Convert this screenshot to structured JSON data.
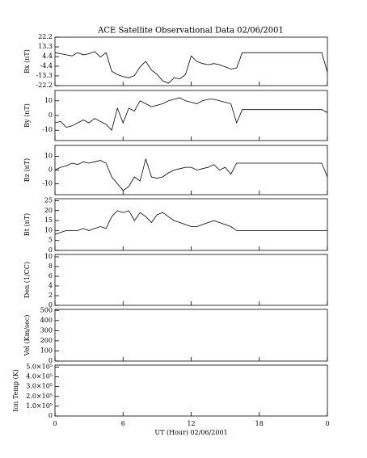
{
  "chart_data": [
    {
      "type": "line",
      "title": "ACE Satellite Observational Data   02/06/2001",
      "ylabel": "Bx (nT)",
      "ylim": [
        -22.2,
        22.2
      ],
      "yticks": [
        22.2,
        13.3,
        4.4,
        -4.4,
        -13.3,
        -22.2
      ],
      "x": [
        0,
        0.5,
        1,
        1.5,
        2,
        2.5,
        3,
        3.5,
        4,
        4.5,
        5,
        5.5,
        6,
        6.5,
        7,
        7.5,
        8,
        8.5,
        9,
        9.5,
        10,
        10.5,
        11,
        11.5,
        12,
        12.5,
        13,
        13.5,
        14,
        14.5,
        15,
        15.5,
        16,
        16.5,
        17,
        17.5,
        18,
        18.5,
        19,
        19.5,
        20,
        20.5,
        21,
        21.5,
        22,
        22.5,
        23,
        23.5,
        24
      ],
      "series": [
        {
          "color": "#000000",
          "values": [
            8,
            7,
            6,
            5,
            8,
            6,
            7,
            9,
            4,
            8,
            -9,
            -12,
            -14,
            -15,
            -13,
            -5,
            0,
            -8,
            -12,
            -18,
            -20,
            -15,
            -16,
            -12,
            5,
            0,
            -2,
            -3,
            -2,
            -3,
            -5,
            -7,
            -6,
            8,
            8,
            8,
            8,
            8,
            8,
            8,
            8,
            8,
            8,
            8,
            8,
            8,
            8,
            8,
            -10
          ]
        }
      ]
    },
    {
      "type": "line",
      "ylabel": "By (nT)",
      "ylim": [
        -17,
        17
      ],
      "yticks": [
        10,
        0,
        -10
      ],
      "x": [
        0,
        0.5,
        1,
        1.5,
        2,
        2.5,
        3,
        3.5,
        4,
        4.5,
        5,
        5.5,
        6,
        6.5,
        7,
        7.5,
        8,
        8.5,
        9,
        9.5,
        10,
        10.5,
        11,
        11.5,
        12,
        12.5,
        13,
        13.5,
        14,
        14.5,
        15,
        15.5,
        16,
        16.5,
        17,
        17.5,
        18,
        18.5,
        19,
        19.5,
        20,
        20.5,
        21,
        21.5,
        22,
        22.5,
        23,
        23.5,
        24
      ],
      "series": [
        {
          "color": "#000000",
          "values": [
            -5,
            -4,
            -8,
            -7,
            -5,
            -3,
            -5,
            -2,
            -4,
            -6,
            -10,
            5,
            -5,
            5,
            3,
            10,
            8,
            6,
            7,
            8,
            10,
            11,
            12,
            10,
            9,
            8,
            10,
            11,
            11,
            10,
            9,
            8,
            -5,
            4,
            4,
            4,
            4,
            4,
            4,
            4,
            4,
            4,
            4,
            4,
            4,
            4,
            4,
            4,
            2
          ]
        }
      ]
    },
    {
      "type": "line",
      "ylabel": "Bz (nT)",
      "ylim": [
        -18,
        18
      ],
      "yticks": [
        10,
        0,
        -10
      ],
      "x": [
        0,
        0.5,
        1,
        1.5,
        2,
        2.5,
        3,
        3.5,
        4,
        4.5,
        5,
        5.5,
        6,
        6.5,
        7,
        7.5,
        8,
        8.5,
        9,
        9.5,
        10,
        10.5,
        11,
        11.5,
        12,
        12.5,
        13,
        13.5,
        14,
        14.5,
        15,
        15.5,
        16,
        16.5,
        17,
        17.5,
        18,
        18.5,
        19,
        19.5,
        20,
        20.5,
        21,
        21.5,
        22,
        22.5,
        23,
        23.5,
        24
      ],
      "series": [
        {
          "color": "#000000",
          "values": [
            0,
            2,
            3,
            5,
            4,
            6,
            5,
            6,
            7,
            5,
            -5,
            -10,
            -15,
            -12,
            -5,
            -8,
            8,
            -5,
            -6,
            -5,
            -2,
            0,
            1,
            2,
            2,
            0,
            1,
            2,
            4,
            0,
            2,
            -3,
            5,
            5,
            5,
            5,
            5,
            5,
            5,
            5,
            5,
            5,
            5,
            5,
            5,
            5,
            5,
            5,
            -5
          ]
        }
      ]
    },
    {
      "type": "line",
      "ylabel": "Bt (nT)",
      "ylim": [
        0,
        26
      ],
      "yticks": [
        25,
        20,
        15,
        10,
        5,
        0
      ],
      "x": [
        0,
        0.5,
        1,
        1.5,
        2,
        2.5,
        3,
        3.5,
        4,
        4.5,
        5,
        5.5,
        6,
        6.5,
        7,
        7.5,
        8,
        8.5,
        9,
        9.5,
        10,
        10.5,
        11,
        11.5,
        12,
        12.5,
        13,
        13.5,
        14,
        14.5,
        15,
        15.5,
        16,
        16.5,
        17,
        17.5,
        18,
        18.5,
        19,
        19.5,
        20,
        20.5,
        21,
        21.5,
        22,
        22.5,
        23,
        23.5,
        24
      ],
      "series": [
        {
          "color": "#000000",
          "values": [
            8,
            9,
            10,
            10,
            10,
            11,
            10,
            11,
            12,
            11,
            17,
            20,
            19,
            20,
            15,
            19,
            17,
            14,
            18,
            19,
            17,
            15,
            14,
            13,
            12,
            12,
            13,
            14,
            15,
            14,
            13,
            12,
            10,
            10,
            10,
            10,
            10,
            10,
            10,
            10,
            10,
            10,
            10,
            10,
            10,
            10,
            10,
            10,
            10
          ]
        }
      ]
    },
    {
      "type": "line",
      "ylabel": "Den (1/CC)",
      "ylim": [
        0,
        10.5
      ],
      "yticks": [
        10,
        8,
        6,
        4,
        2,
        0
      ]
    },
    {
      "type": "line",
      "ylabel": "Vel (Km/sec)",
      "ylim": [
        0,
        510
      ],
      "yticks": [
        500,
        400,
        300,
        200,
        100,
        0
      ]
    },
    {
      "type": "line",
      "ylabel": "Ion Temp (K)",
      "ylim": [
        0,
        520000
      ],
      "yticks": [
        {
          "value": 500000,
          "label": "5.0×10⁵"
        },
        {
          "value": 400000,
          "label": "4.0×10⁵"
        },
        {
          "value": 300000,
          "label": "3.0×10⁵"
        },
        {
          "value": 200000,
          "label": "2.0×10⁵"
        },
        {
          "value": 100000,
          "label": "1.0×10⁵"
        },
        0
      ],
      "xlabel": "UT (Hour)   02/06/2001",
      "xlim": [
        0,
        24
      ],
      "xticks": [
        0,
        6,
        12,
        18,
        {
          "value": 24,
          "label": "0"
        }
      ]
    }
  ]
}
